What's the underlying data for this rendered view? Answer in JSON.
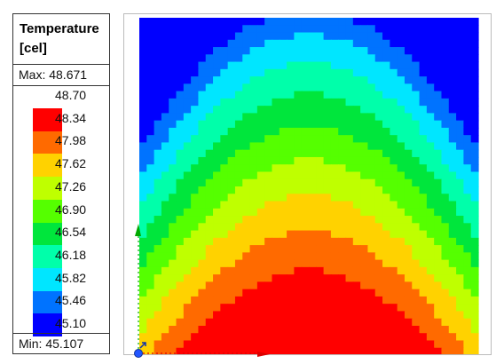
{
  "legend": {
    "title_line1": "Temperature",
    "title_line2": "[cel]",
    "max_text": "Max: 48.671",
    "min_text": "Min: 45.107",
    "levels": [
      {
        "label": "48.70",
        "color": "#ff0000"
      },
      {
        "label": "48.34",
        "color": "#ff6a00"
      },
      {
        "label": "47.98",
        "color": "#ffd200"
      },
      {
        "label": "47.62",
        "color": "#bfff00"
      },
      {
        "label": "47.26",
        "color": "#55ff00"
      },
      {
        "label": "46.90",
        "color": "#00e63c"
      },
      {
        "label": "46.54",
        "color": "#00ffaa"
      },
      {
        "label": "46.18",
        "color": "#00e6ff"
      },
      {
        "label": "45.82",
        "color": "#0073ff"
      },
      {
        "label": "45.46",
        "color": "#0000ff"
      },
      {
        "label": "45.10",
        "color": ""
      }
    ]
  },
  "field": {
    "quantity": "Temperature",
    "unit": "cel",
    "max": 48.671,
    "min": 45.107
  },
  "triad": {
    "axis_colors": {
      "x": "#dd0000",
      "y": "#00aa00",
      "z": "#2255ff"
    }
  }
}
